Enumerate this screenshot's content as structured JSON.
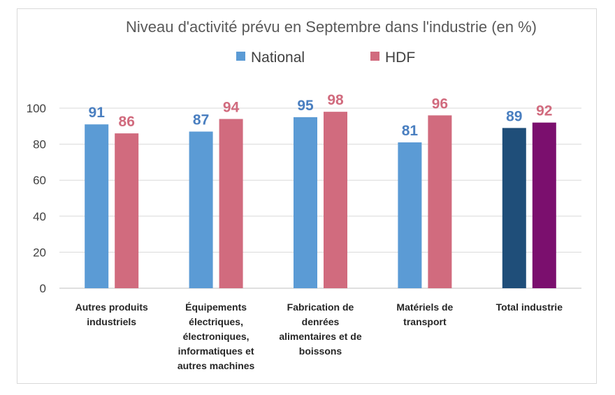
{
  "chart_data": {
    "type": "bar",
    "title": "Niveau d'activité prévu en Septembre dans l'industrie (en %)",
    "categories": [
      [
        "Autres produits",
        "industriels"
      ],
      [
        "Équipements",
        "électriques,",
        "électroniques,",
        "informatiques et",
        "autres machines"
      ],
      [
        "Fabrication de",
        "denrées",
        "alimentaires et de",
        "boissons"
      ],
      [
        "Matériels de",
        "transport"
      ],
      [
        "Total industrie"
      ]
    ],
    "series": [
      {
        "name": "National",
        "values": [
          91,
          87,
          95,
          81,
          89
        ],
        "color": "#5b9bd5",
        "label_color": "#4a7fc0",
        "total_color": "#1f4e79"
      },
      {
        "name": "HDF",
        "values": [
          86,
          94,
          98,
          96,
          92
        ],
        "color": "#d16b7e",
        "label_color": "#d16b7e",
        "total_color": "#7b0f6e"
      }
    ],
    "yticks": [
      0,
      20,
      40,
      60,
      80,
      100
    ],
    "ylim": [
      0,
      100
    ],
    "grid": true,
    "legend_position": "top-center"
  }
}
